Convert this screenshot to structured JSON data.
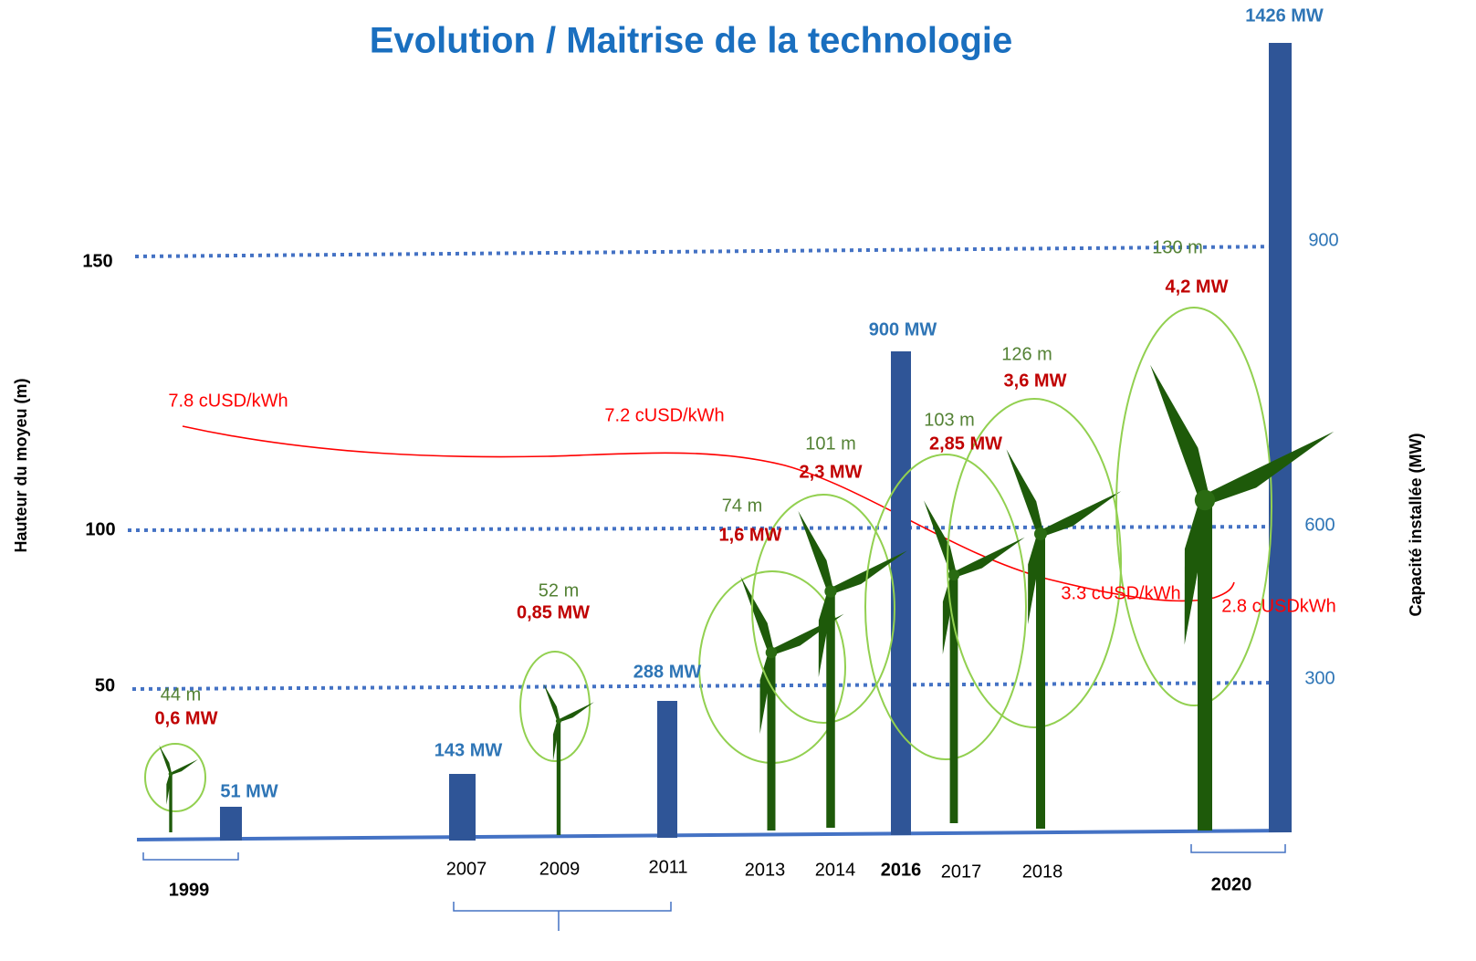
{
  "title": "Evolution / Maitrise de la technologie",
  "left_axis": {
    "label": "Hauteur du moyeu (m)",
    "ticks": [
      "150",
      "100",
      "50"
    ]
  },
  "right_axis": {
    "label": "Capacité installée (MW)",
    "ticks": [
      "900",
      "600",
      "300"
    ]
  },
  "years": [
    "1999",
    "2007",
    "2009",
    "2011",
    "2013",
    "2014",
    "2016",
    "2017",
    "2018",
    "2020"
  ],
  "capacity_labels": [
    "51 MW",
    "143 MW",
    "288 MW",
    "900 MW",
    "1426 MW"
  ],
  "turbines": [
    {
      "height": "44 m",
      "power": "0,6 MW"
    },
    {
      "height": "52 m",
      "power": "0,85 MW"
    },
    {
      "height": "74 m",
      "power": "1,6 MW"
    },
    {
      "height": "101 m",
      "power": "2,3 MW"
    },
    {
      "height": "103 m",
      "power": "2,85 MW"
    },
    {
      "height": "126 m",
      "power": "3,6 MW"
    },
    {
      "height": "130 m",
      "power": "4,2 MW"
    }
  ],
  "cost_labels": [
    "7.8 cUSD/kWh",
    "7.2 cUSD/kWh",
    "3.3 cUSD/kWh",
    "2.8 cUSDkWh"
  ]
}
